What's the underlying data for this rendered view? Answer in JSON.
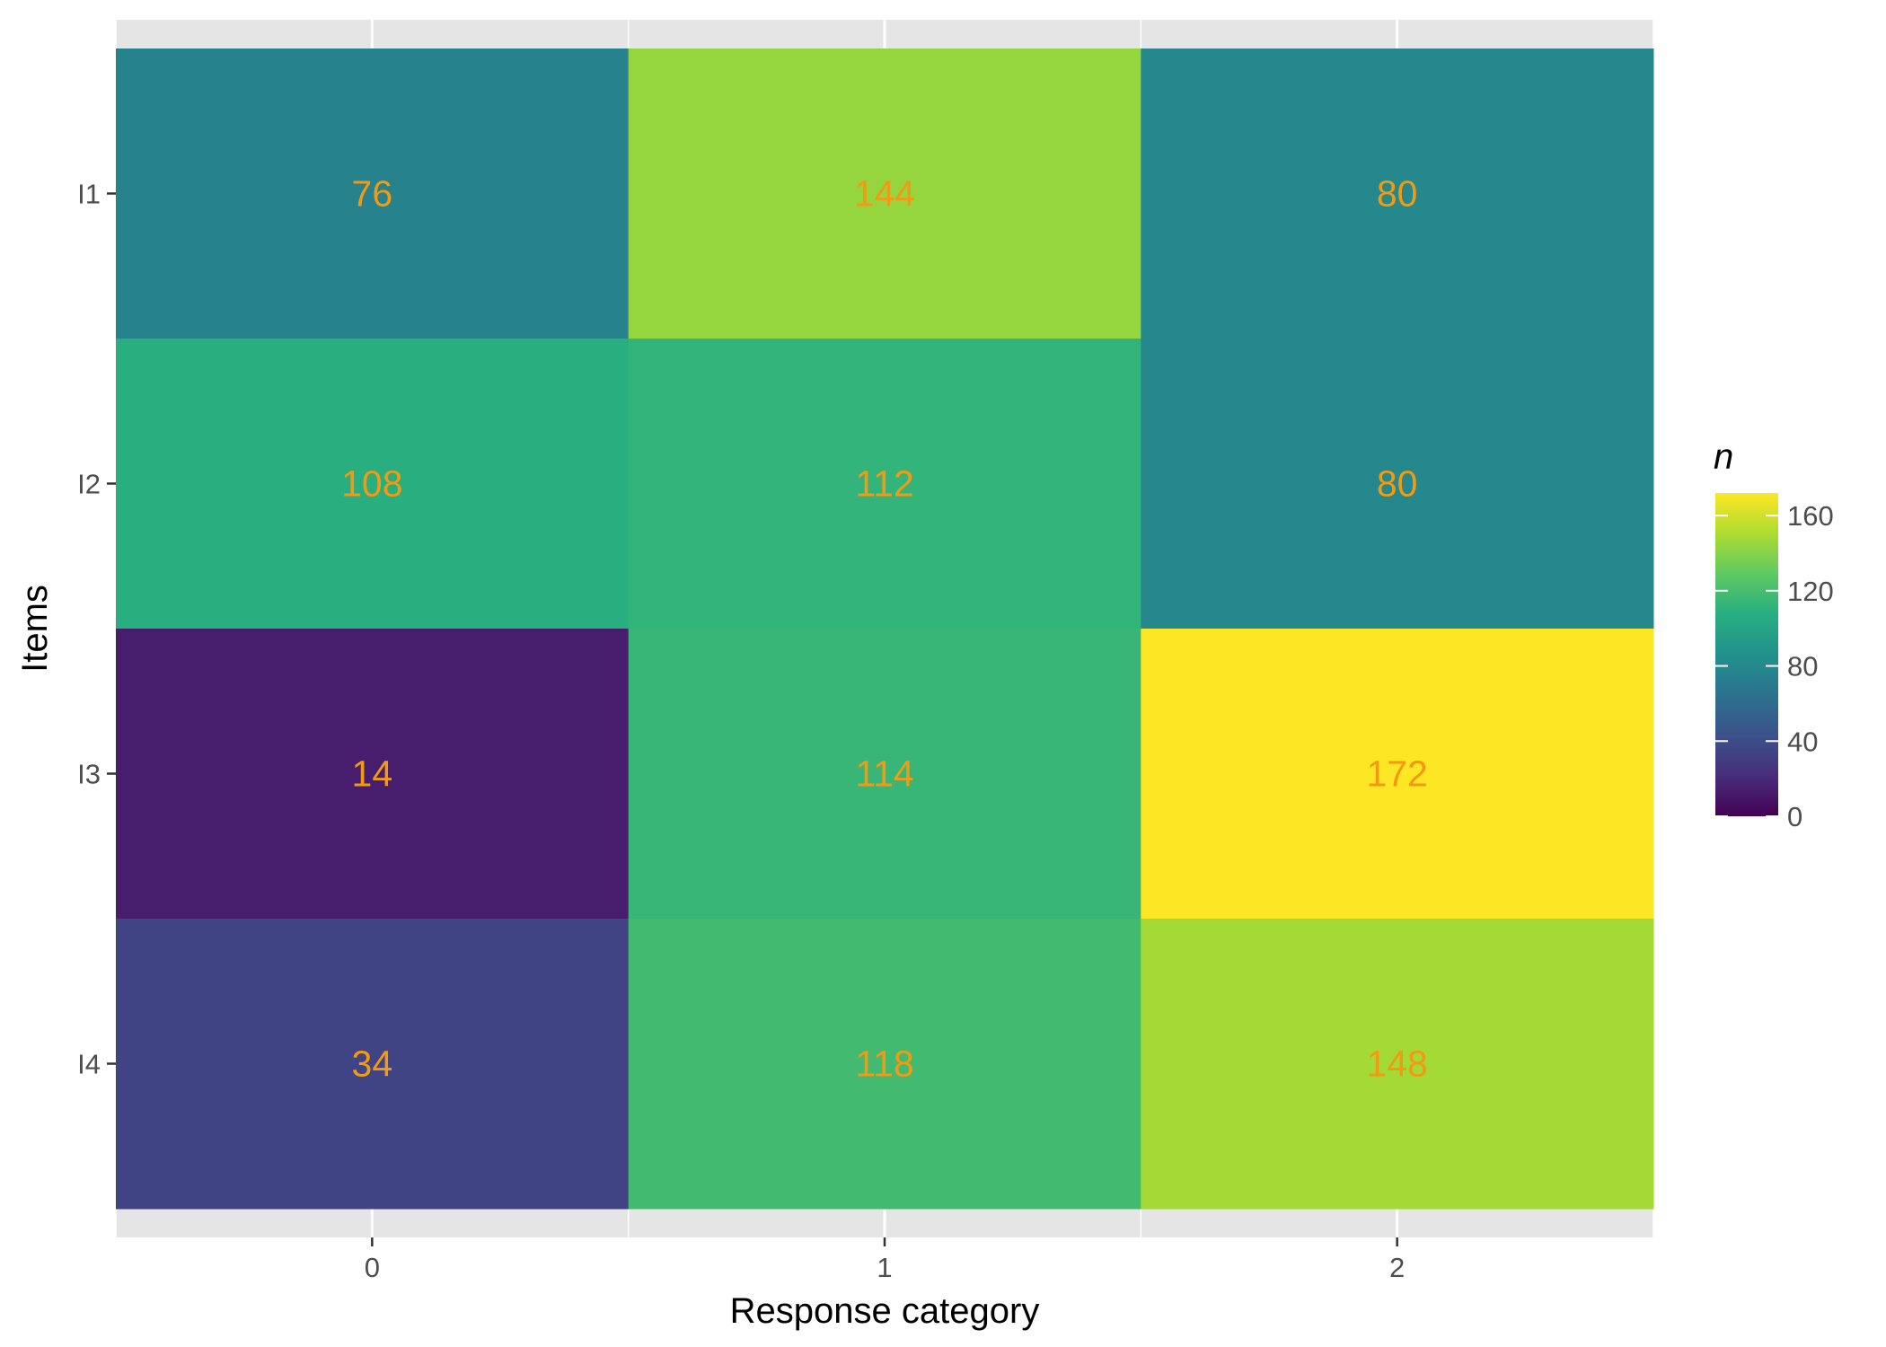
{
  "chart_data": {
    "type": "heatmap",
    "title": "",
    "xlabel": "Response category",
    "ylabel": "Items",
    "x_categories": [
      "0",
      "1",
      "2"
    ],
    "y_categories": [
      "I1",
      "I2",
      "I3",
      "I4"
    ],
    "values": [
      [
        76,
        144,
        80
      ],
      [
        108,
        112,
        80
      ],
      [
        14,
        114,
        172
      ],
      [
        34,
        118,
        148
      ]
    ],
    "colorscale": "viridis",
    "color_range": [
      0,
      172
    ],
    "label_color": "#F29A12",
    "legend": {
      "title": "n",
      "ticks": [
        "0",
        "40",
        "80",
        "120",
        "160"
      ],
      "tick_values": [
        0,
        40,
        80,
        120,
        160
      ],
      "position": "right"
    },
    "panel_background": "#E5E5E5",
    "grid": true
  }
}
